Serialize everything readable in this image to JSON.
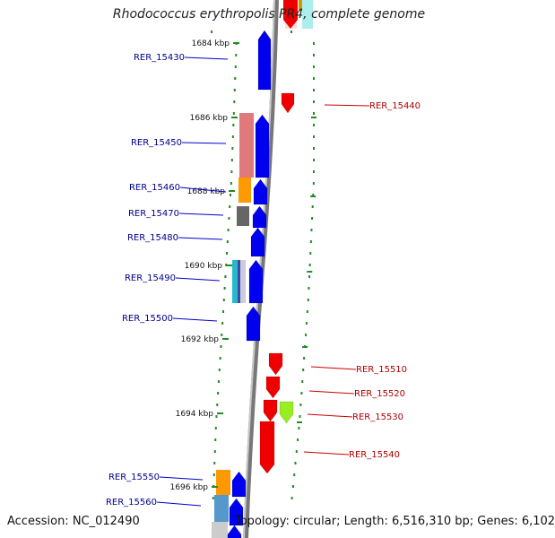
{
  "title": "Rhodococcus erythropolis PR4, complete genome",
  "accession": "Accession: NC_012490",
  "topology": "Topology: circular; Length: 6,516,310 bp; Genes: 6,102",
  "colors": {
    "forward": "#0000ee",
    "reverse": "#ee0000",
    "backbone": "#999999",
    "tick": "#228b22",
    "label_forward": "#00008b",
    "label_reverse": "#b00000"
  },
  "kbp_ticks": [
    {
      "label": "1684 kbp"
    },
    {
      "label": "1686 kbp"
    },
    {
      "label": "1688 kbp"
    },
    {
      "label": "1690 kbp"
    },
    {
      "label": "1692 kbp"
    },
    {
      "label": "1694 kbp"
    },
    {
      "label": "1696 kbp"
    }
  ],
  "genes": [
    {
      "label": "RER_15430",
      "strand": "forward"
    },
    {
      "label": "RER_15440",
      "strand": "reverse"
    },
    {
      "label": "RER_15450",
      "strand": "forward"
    },
    {
      "label": "RER_15460",
      "strand": "forward"
    },
    {
      "label": "RER_15470",
      "strand": "forward"
    },
    {
      "label": "RER_15480",
      "strand": "forward"
    },
    {
      "label": "RER_15490",
      "strand": "forward"
    },
    {
      "label": "RER_15500",
      "strand": "forward"
    },
    {
      "label": "RER_15510",
      "strand": "reverse"
    },
    {
      "label": "RER_15520",
      "strand": "reverse"
    },
    {
      "label": "RER_15530",
      "strand": "reverse"
    },
    {
      "label": "RER_15540",
      "strand": "reverse"
    },
    {
      "label": "RER_15550",
      "strand": "forward"
    },
    {
      "label": "RER_15560",
      "strand": "forward"
    }
  ]
}
